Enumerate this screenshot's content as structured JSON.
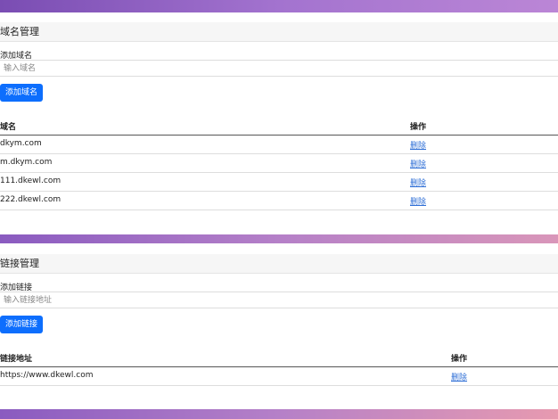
{
  "sections": [
    {
      "title": "域名管理",
      "label": "添加域名",
      "placeholder": "输入域名",
      "button": "添加域名",
      "table": {
        "headers": [
          "域名",
          "操作"
        ],
        "rows": [
          [
            "dkym.com",
            "删除"
          ],
          [
            "m.dkym.com",
            "删除"
          ],
          [
            "111.dkewl.com",
            "删除"
          ],
          [
            "222.dkewl.com",
            "删除"
          ]
        ]
      }
    },
    {
      "title": "链接管理",
      "label": "添加链接",
      "placeholder": "输入链接地址",
      "button": "添加链接",
      "table": {
        "headers": [
          "链接地址",
          "操作"
        ],
        "rows": [
          [
            "https://www.dkewl.com",
            "删除"
          ]
        ]
      }
    }
  ]
}
